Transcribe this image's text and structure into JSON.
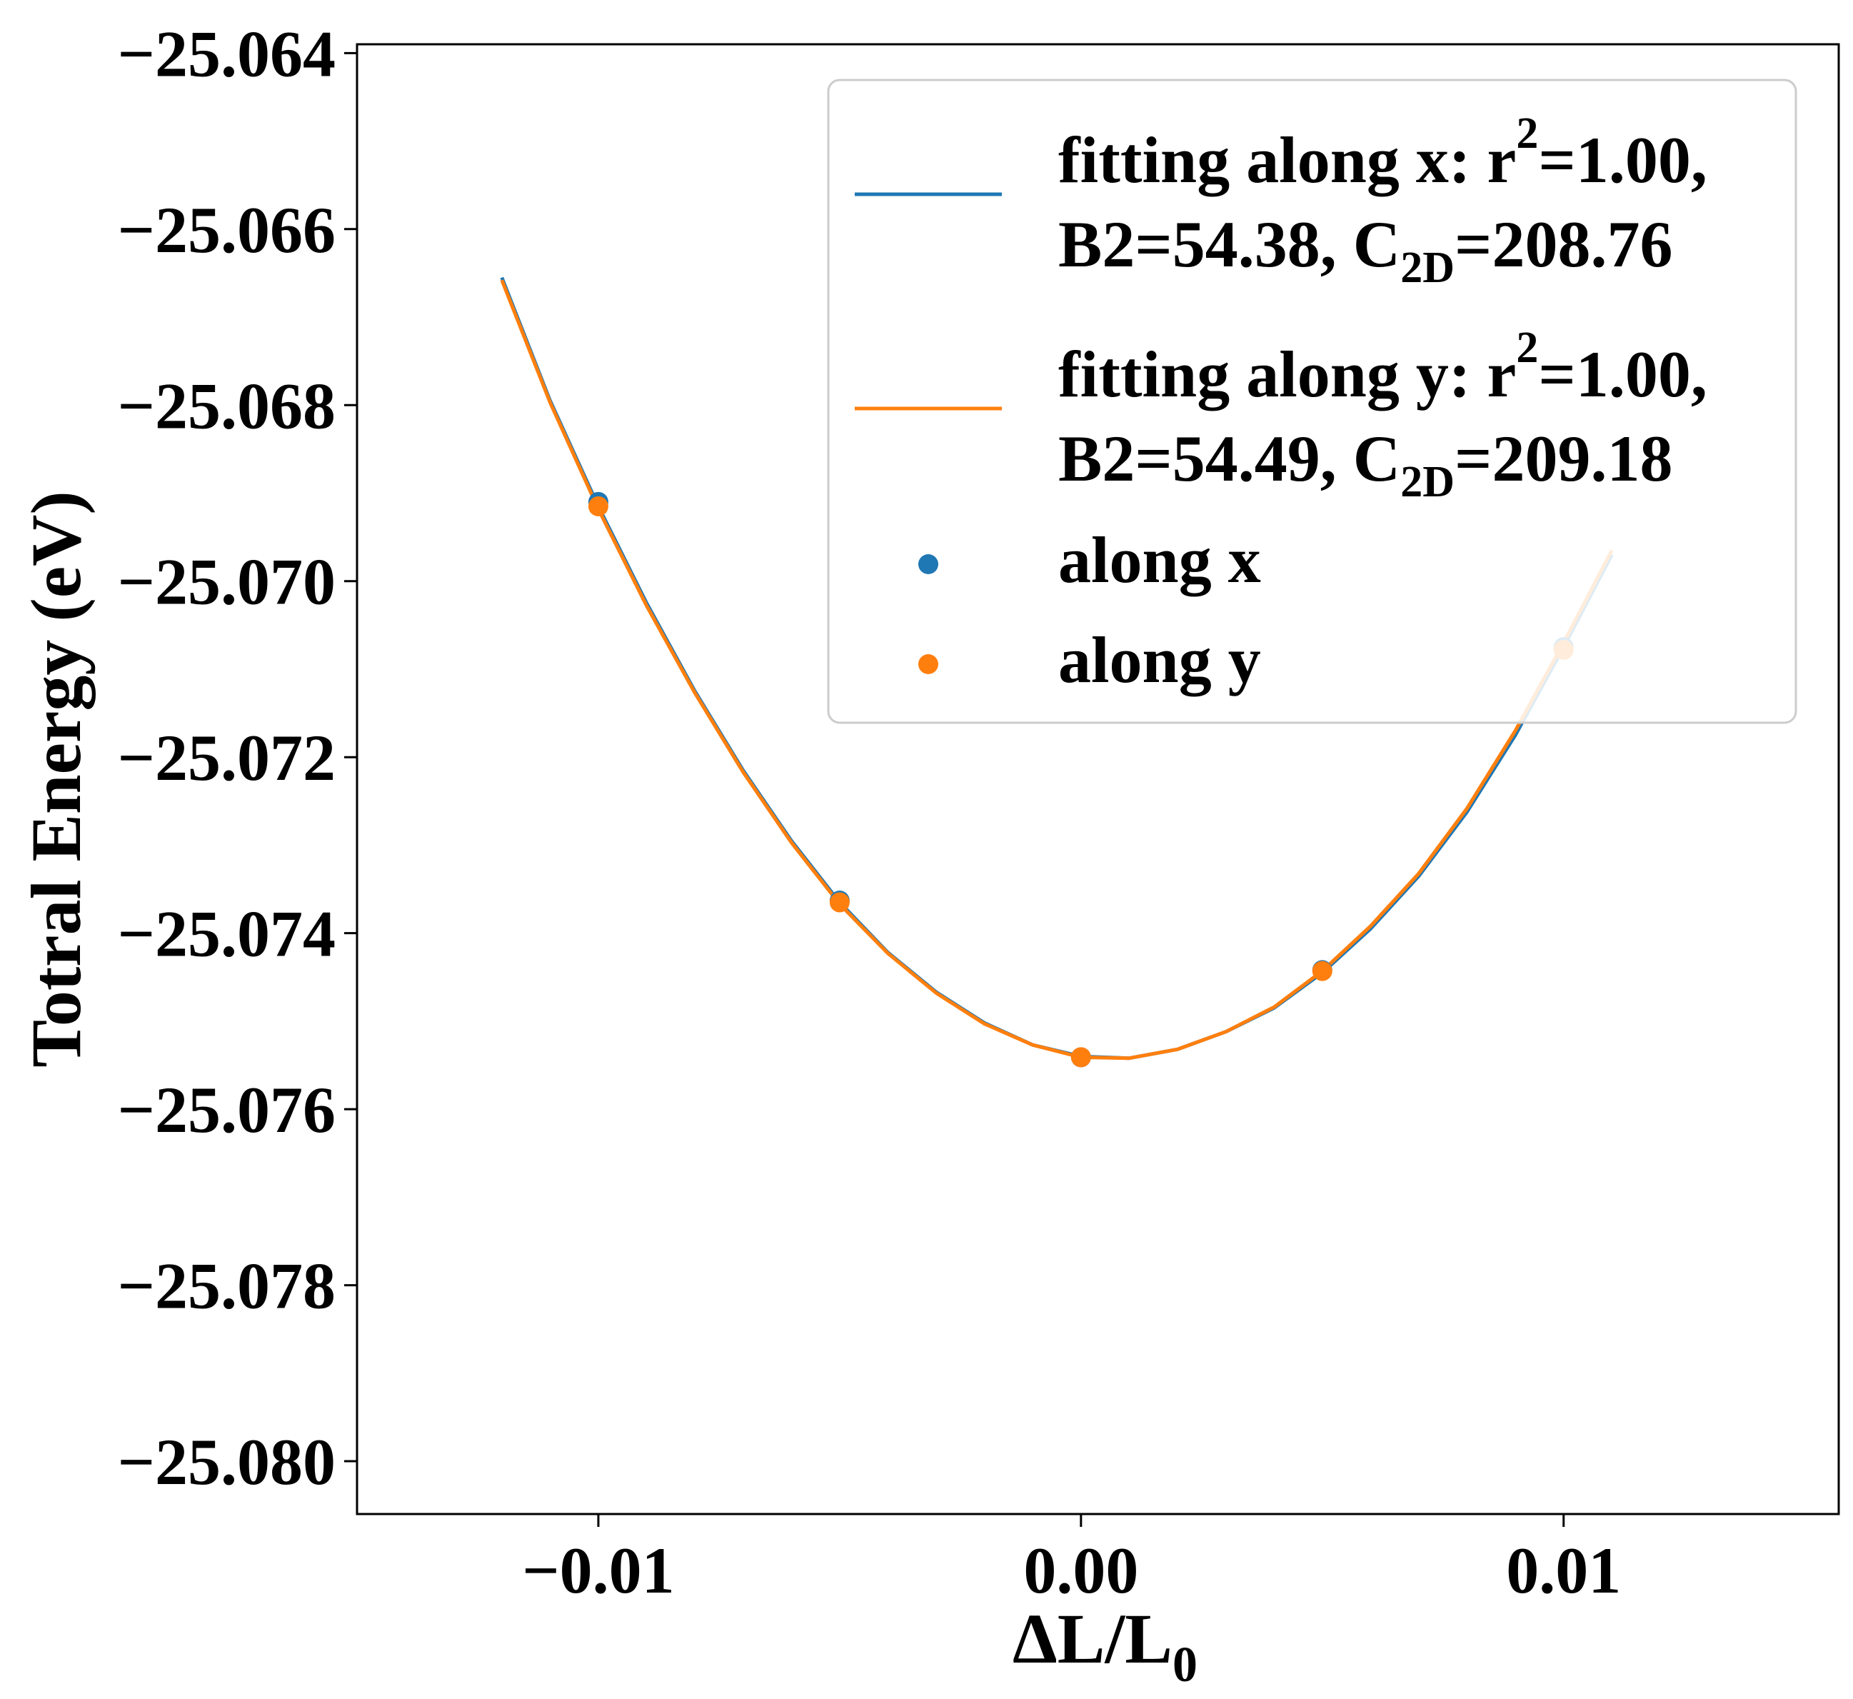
{
  "chart_data": {
    "type": "line",
    "title": "",
    "xlabel": "ΔL/L",
    "xlabel_subscript": "0",
    "ylabel": "Totral Energy (eV)",
    "xlim": [
      -0.015,
      0.0157
    ],
    "ylim": [
      -25.0806,
      -25.0639
    ],
    "x_ticks": [
      -0.01,
      0.0,
      0.01
    ],
    "x_tick_labels": [
      "−0.01",
      "0.00",
      "0.01"
    ],
    "y_ticks": [
      -25.064,
      -25.066,
      -25.068,
      -25.07,
      -25.072,
      -25.074,
      -25.076,
      -25.078,
      -25.08
    ],
    "y_tick_labels": [
      "−25.064",
      "−25.066",
      "−25.068",
      "−25.070",
      "−25.072",
      "−25.074",
      "−25.076",
      "−25.078",
      "−25.080"
    ],
    "grid": false,
    "legend_position": "top-right",
    "series": [
      {
        "name": "fitting along x",
        "kind": "line",
        "color": "#1f77b4",
        "legend_lines": [
          [
            {
              "t": "fitting along x: r"
            },
            {
              "t": "2",
              "sup": true
            },
            {
              "t": "=1.00,"
            }
          ],
          [
            {
              "t": "B2=54.38, C"
            },
            {
              "t": "2D",
              "sub": true
            },
            {
              "t": "=208.76"
            }
          ]
        ],
        "x": [
          -0.012,
          -0.011,
          -0.01,
          -0.009,
          -0.008,
          -0.007,
          -0.006,
          -0.005,
          -0.004,
          -0.003,
          -0.002,
          -0.001,
          0.0,
          0.001,
          0.002,
          0.003,
          0.004,
          0.005,
          0.006,
          0.007,
          0.008,
          0.009,
          0.01,
          0.011
        ],
        "y": [
          -25.06655,
          -25.06795,
          -25.06915,
          -25.07025,
          -25.07125,
          -25.07215,
          -25.07295,
          -25.07365,
          -25.07422,
          -25.07467,
          -25.07502,
          -25.07527,
          -25.0754,
          -25.07542,
          -25.07532,
          -25.07512,
          -25.07485,
          -25.07445,
          -25.07395,
          -25.07335,
          -25.07262,
          -25.07175,
          -25.07075,
          -25.0697
        ]
      },
      {
        "name": "fitting along y",
        "kind": "line",
        "color": "#ff7f0e",
        "legend_lines": [
          [
            {
              "t": "fitting along y: r"
            },
            {
              "t": "2",
              "sup": true
            },
            {
              "t": "=1.00,"
            }
          ],
          [
            {
              "t": "B2=54.49, C"
            },
            {
              "t": "2D",
              "sub": true
            },
            {
              "t": "=209.18"
            }
          ]
        ],
        "x": [
          -0.012,
          -0.011,
          -0.01,
          -0.009,
          -0.008,
          -0.007,
          -0.006,
          -0.005,
          -0.004,
          -0.003,
          -0.002,
          -0.001,
          0.0,
          0.001,
          0.002,
          0.003,
          0.004,
          0.005,
          0.006,
          0.007,
          0.008,
          0.009,
          0.01,
          0.011
        ],
        "y": [
          -25.06658,
          -25.06797,
          -25.06918,
          -25.07028,
          -25.07127,
          -25.07217,
          -25.07297,
          -25.07367,
          -25.07423,
          -25.07468,
          -25.07503,
          -25.07527,
          -25.07541,
          -25.07542,
          -25.07532,
          -25.07512,
          -25.07484,
          -25.07443,
          -25.07392,
          -25.07332,
          -25.07258,
          -25.0717,
          -25.0707,
          -25.06965
        ]
      },
      {
        "name": "along x",
        "kind": "scatter",
        "color": "#1f77b4",
        "legend_lines": [
          [
            {
              "t": "along x"
            }
          ]
        ],
        "x": [
          -0.01,
          -0.005,
          0.0,
          0.005,
          0.01
        ],
        "y": [
          -25.0691,
          -25.07363,
          -25.07541,
          -25.07442,
          -25.07075
        ]
      },
      {
        "name": "along y",
        "kind": "scatter",
        "color": "#ff7f0e",
        "legend_lines": [
          [
            {
              "t": "along y"
            }
          ]
        ],
        "x": [
          -0.01,
          -0.005,
          0.0,
          0.005,
          0.01
        ],
        "y": [
          -25.06915,
          -25.07365,
          -25.07541,
          -25.07443,
          -25.07078
        ]
      }
    ]
  }
}
